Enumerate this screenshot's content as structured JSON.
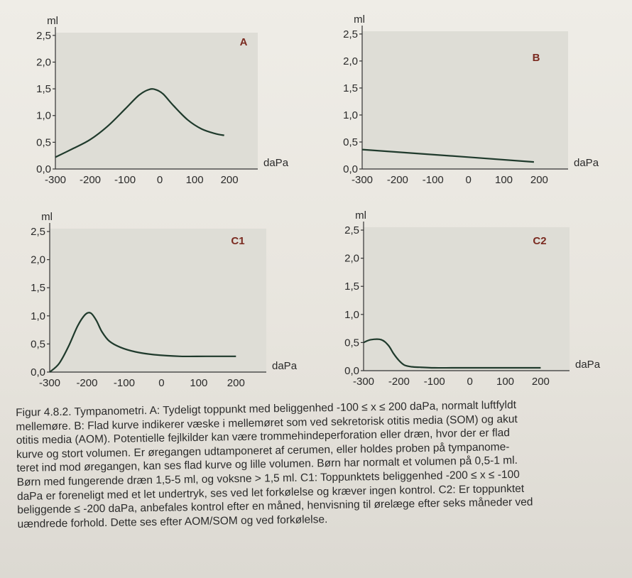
{
  "chart_data": [
    {
      "type": "line",
      "panel_label": "A",
      "ylabel": "ml",
      "xlabel": "daPa",
      "xlim": [
        -300,
        200
      ],
      "ylim": [
        0,
        2.5
      ],
      "x_ticks": [
        "-300",
        "-200",
        "-100",
        "0",
        "100",
        "200"
      ],
      "y_ticks": [
        "0,0",
        "0,5",
        "1,0",
        "1,5",
        "2,0",
        "2,5"
      ],
      "series": [
        {
          "x": [
            -300,
            -250,
            -200,
            -150,
            -100,
            -60,
            -30,
            -10,
            10,
            40,
            80,
            120,
            160,
            185
          ],
          "y": [
            0.22,
            0.38,
            0.55,
            0.8,
            1.12,
            1.38,
            1.49,
            1.48,
            1.4,
            1.18,
            0.92,
            0.75,
            0.66,
            0.63
          ]
        }
      ]
    },
    {
      "type": "line",
      "panel_label": "B",
      "ylabel": "ml",
      "xlabel": "daPa",
      "xlim": [
        -300,
        200
      ],
      "ylim": [
        0,
        2.5
      ],
      "x_ticks": [
        "-300",
        "-200",
        "-100",
        "0",
        "100",
        "200"
      ],
      "y_ticks": [
        "0,0",
        "0,5",
        "1,0",
        "1,5",
        "2,0",
        "2,5"
      ],
      "series": [
        {
          "x": [
            -300,
            0,
            185
          ],
          "y": [
            0.36,
            0.22,
            0.13
          ]
        }
      ]
    },
    {
      "type": "line",
      "panel_label": "C1",
      "ylabel": "ml",
      "xlabel": "daPa",
      "xlim": [
        -300,
        200
      ],
      "ylim": [
        0,
        2.5
      ],
      "x_ticks": [
        "-300",
        "-200",
        "-100",
        "0",
        "100",
        "200"
      ],
      "y_ticks": [
        "0,0",
        "0,5",
        "1,0",
        "1,5",
        "2,0",
        "2,5"
      ],
      "series": [
        {
          "x": [
            -300,
            -275,
            -250,
            -225,
            -205,
            -190,
            -175,
            -160,
            -140,
            -110,
            -70,
            -20,
            50,
            120,
            200
          ],
          "y": [
            0.0,
            0.15,
            0.45,
            0.82,
            1.02,
            1.05,
            0.92,
            0.72,
            0.55,
            0.44,
            0.36,
            0.31,
            0.28,
            0.28,
            0.28
          ]
        }
      ]
    },
    {
      "type": "line",
      "panel_label": "C2",
      "ylabel": "ml",
      "xlabel": "daPa",
      "xlim": [
        -300,
        200
      ],
      "ylim": [
        0,
        2.5
      ],
      "x_ticks": [
        "-300",
        "-200",
        "-100",
        "0",
        "100",
        "200"
      ],
      "y_ticks": [
        "0,0",
        "0,5",
        "1,0",
        "1,5",
        "2,0",
        "2,5"
      ],
      "series": [
        {
          "x": [
            -300,
            -280,
            -250,
            -230,
            -215,
            -200,
            -185,
            -165,
            -140,
            -100,
            -50,
            0,
            100,
            200
          ],
          "y": [
            0.5,
            0.55,
            0.55,
            0.45,
            0.3,
            0.18,
            0.1,
            0.07,
            0.06,
            0.05,
            0.05,
            0.05,
            0.05,
            0.05
          ]
        }
      ]
    }
  ],
  "caption": {
    "lines": [
      "Figur 4.8.2. Tympanometri. A: Tydeligt toppunkt med beliggenhed -100 ≤ x ≤ 200 daPa, normalt luftfyldt",
      "mellemøre. B: Flad kurve indikerer væske i mellemøret som ved sekretorisk otitis media (SOM) og akut",
      "otitis media (AOM). Potentielle fejlkilder kan være trommehindeperforation eller dræn, hvor der er flad",
      "kurve og stort volumen. Er øregangen udtamponeret af cerumen, eller holdes proben på tympanome-",
      "teret ind mod øregangen, kan ses flad kurve og lille volumen. Børn har normalt et volumen på 0,5-1 ml.",
      "Børn med fungerende dræn 1,5-5 ml, og voksne > 1,5 ml. C1: Toppunktets beliggenhed -200 ≤ x ≤ -100",
      "daPa er foreneligt med et let undertryk, ses ved let forkølelse og kræver ingen kontrol. C2: Er toppunktet",
      "beliggende ≤ -200 daPa, anbefales kontrol efter en måned, henvisning til ørelæge efter seks måneder ved",
      "uændrede forhold. Dette ses efter AOM/SOM og ved forkølelse."
    ]
  }
}
